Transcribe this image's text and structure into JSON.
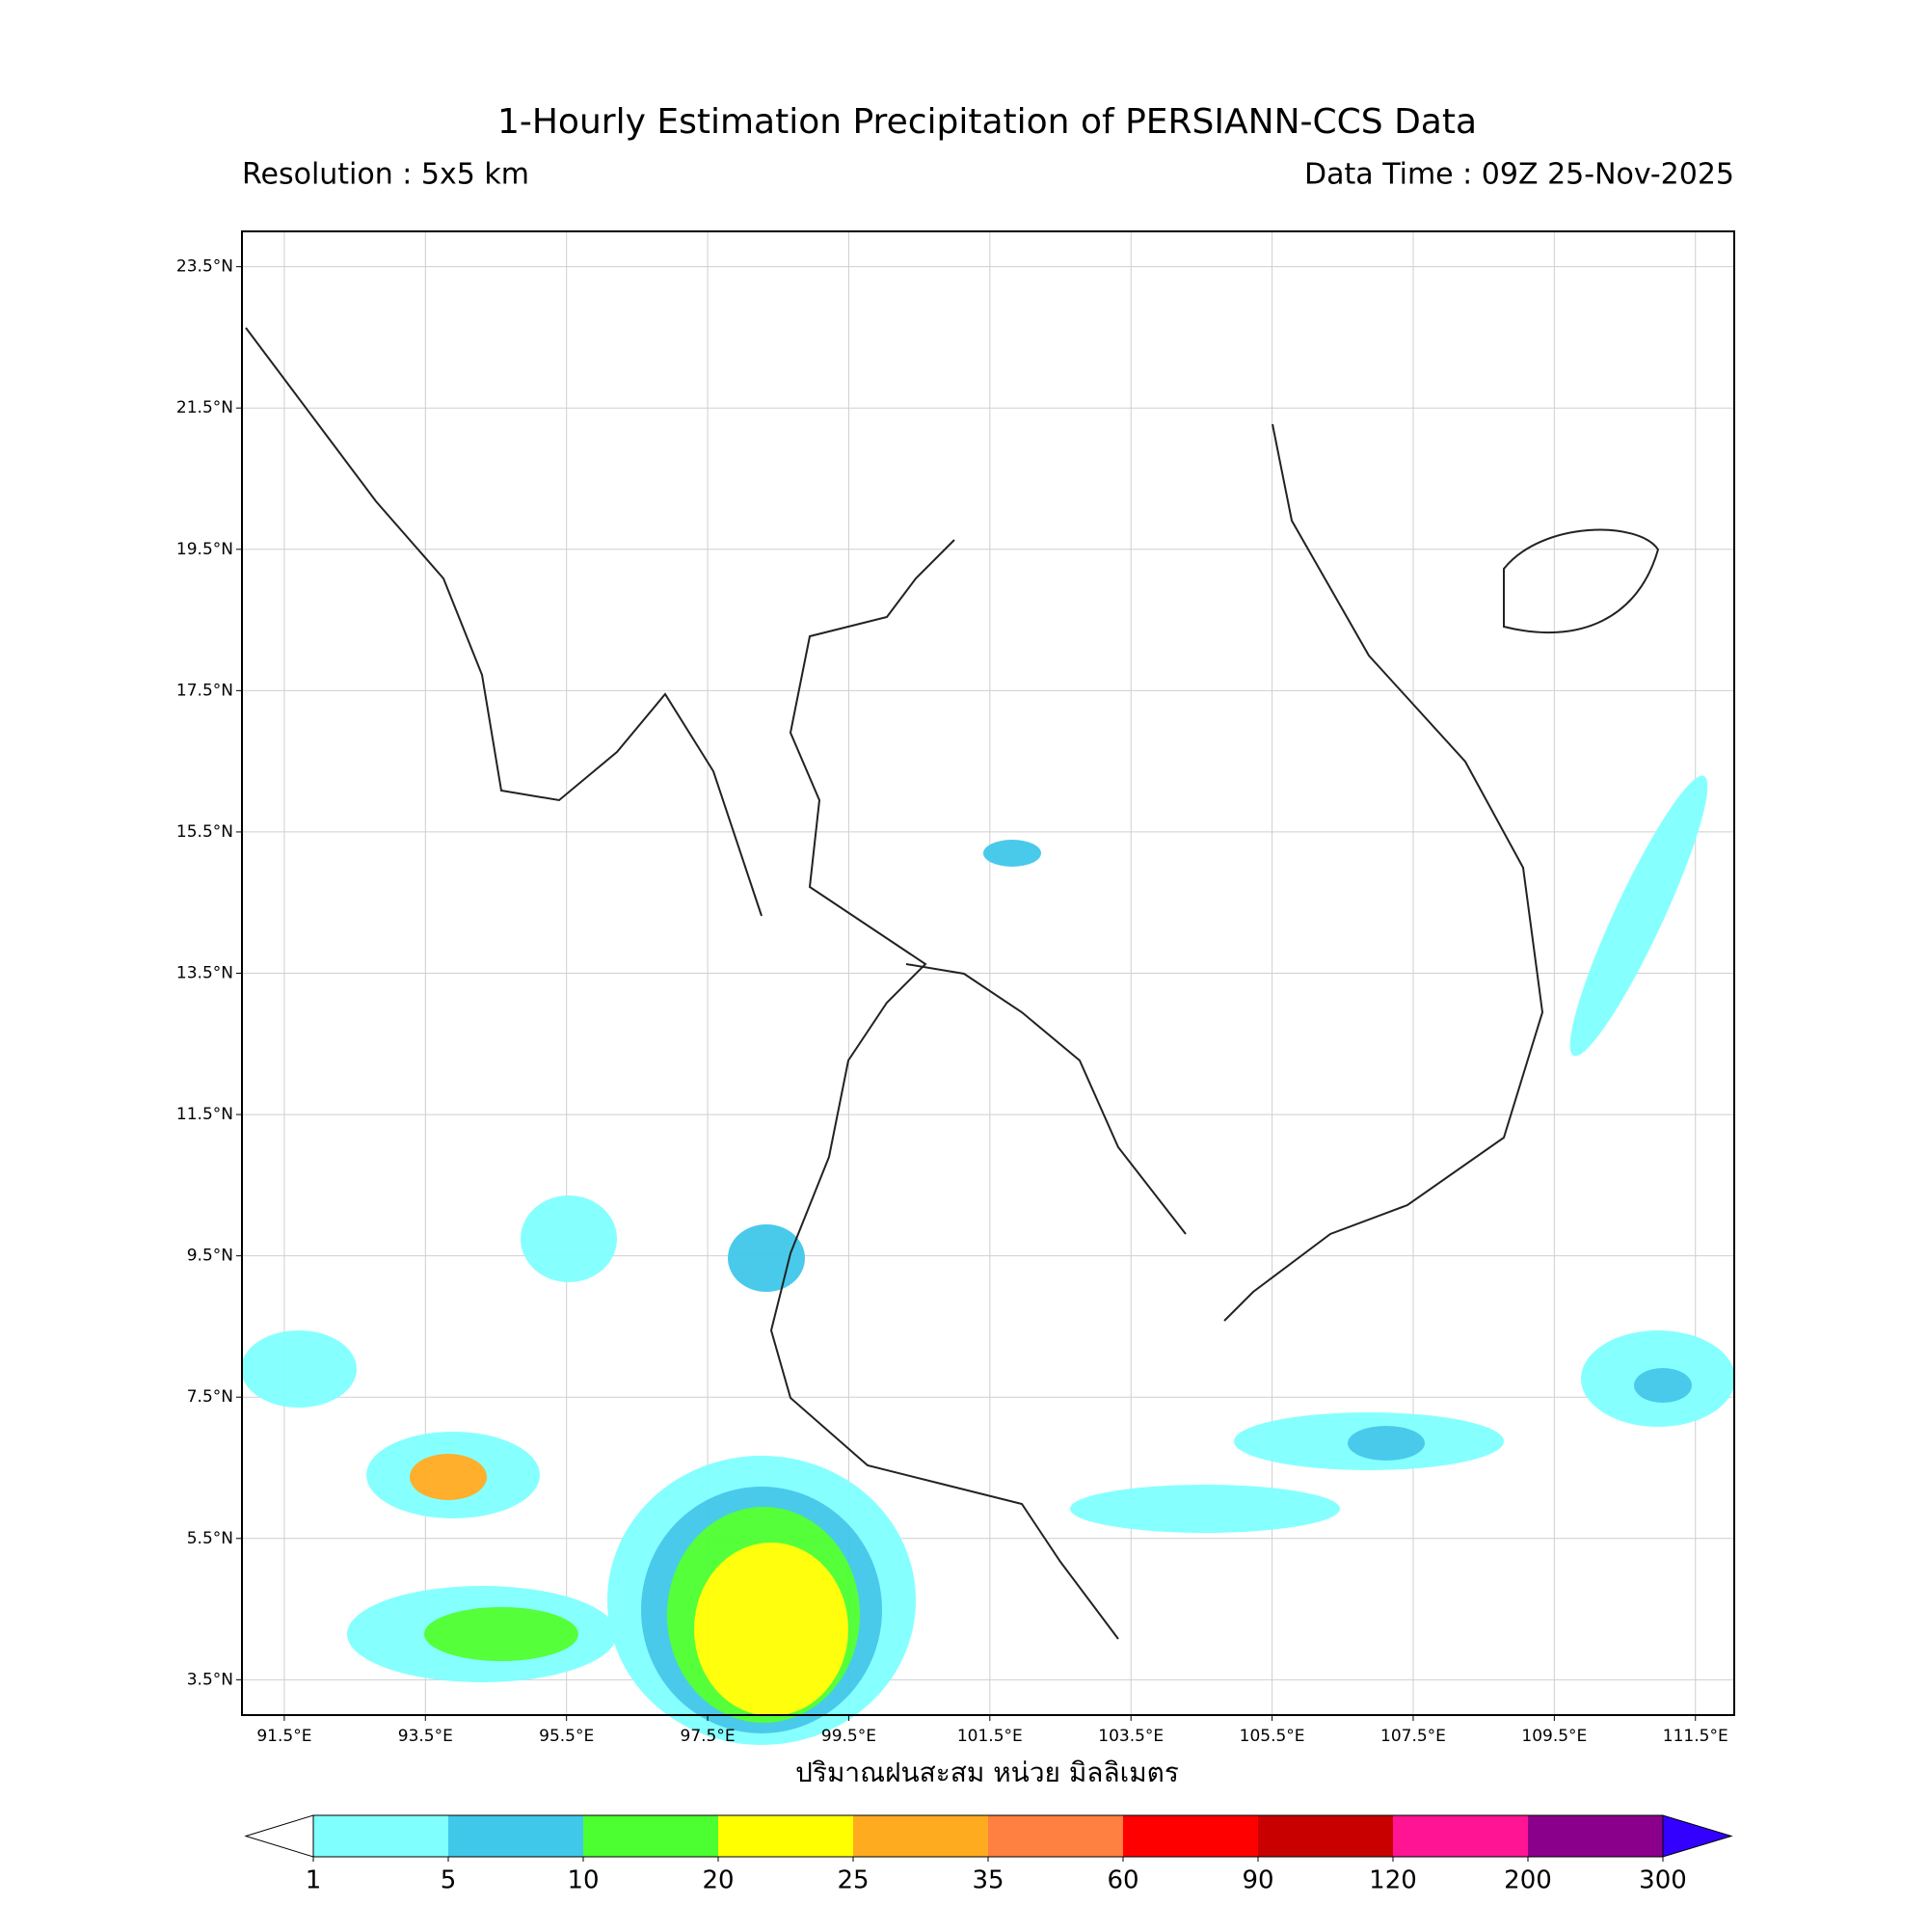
{
  "chart_data": {
    "type": "map",
    "title": "1-Hourly Estimation Precipitation of PERSIANN-CCS Data",
    "subtitle_left": "Resolution : 5x5 km",
    "subtitle_right": "Data Time : 09Z 25-Nov-2025",
    "xlabel": "ปริมาณฝนสะสม หน่วย มิลลิเมตร",
    "xlim": [
      90.9,
      112.05
    ],
    "ylim": [
      3.0,
      24.0
    ],
    "grid": true,
    "xticks": [
      {
        "value": 91.5,
        "label": "91.5°E"
      },
      {
        "value": 93.5,
        "label": "93.5°E"
      },
      {
        "value": 95.5,
        "label": "95.5°E"
      },
      {
        "value": 97.5,
        "label": "97.5°E"
      },
      {
        "value": 99.5,
        "label": "99.5°E"
      },
      {
        "value": 101.5,
        "label": "101.5°E"
      },
      {
        "value": 103.5,
        "label": "103.5°E"
      },
      {
        "value": 105.5,
        "label": "105.5°E"
      },
      {
        "value": 107.5,
        "label": "107.5°E"
      },
      {
        "value": 109.5,
        "label": "109.5°E"
      },
      {
        "value": 111.5,
        "label": "111.5°E"
      }
    ],
    "yticks": [
      {
        "value": 3.5,
        "label": "3.5°N"
      },
      {
        "value": 5.5,
        "label": "5.5°N"
      },
      {
        "value": 7.5,
        "label": "7.5°N"
      },
      {
        "value": 9.5,
        "label": "9.5°N"
      },
      {
        "value": 11.5,
        "label": "11.5°N"
      },
      {
        "value": 13.5,
        "label": "13.5°N"
      },
      {
        "value": 15.5,
        "label": "15.5°N"
      },
      {
        "value": 17.5,
        "label": "17.5°N"
      },
      {
        "value": 19.5,
        "label": "19.5°N"
      },
      {
        "value": 21.5,
        "label": "21.5°N"
      },
      {
        "value": 23.5,
        "label": "23.5°N"
      }
    ],
    "colorbar": {
      "levels": [
        1,
        5,
        10,
        20,
        25,
        35,
        60,
        90,
        120,
        200,
        300
      ],
      "colors": [
        "#80ffff",
        "#40c8ea",
        "#4cff30",
        "#ffff00",
        "#ffab20",
        "#ff8040",
        "#ff0000",
        "#c80000",
        "#ff1493",
        "#8b008b"
      ],
      "under_color": "#ffffff",
      "over_color": "#3300ff"
    }
  }
}
